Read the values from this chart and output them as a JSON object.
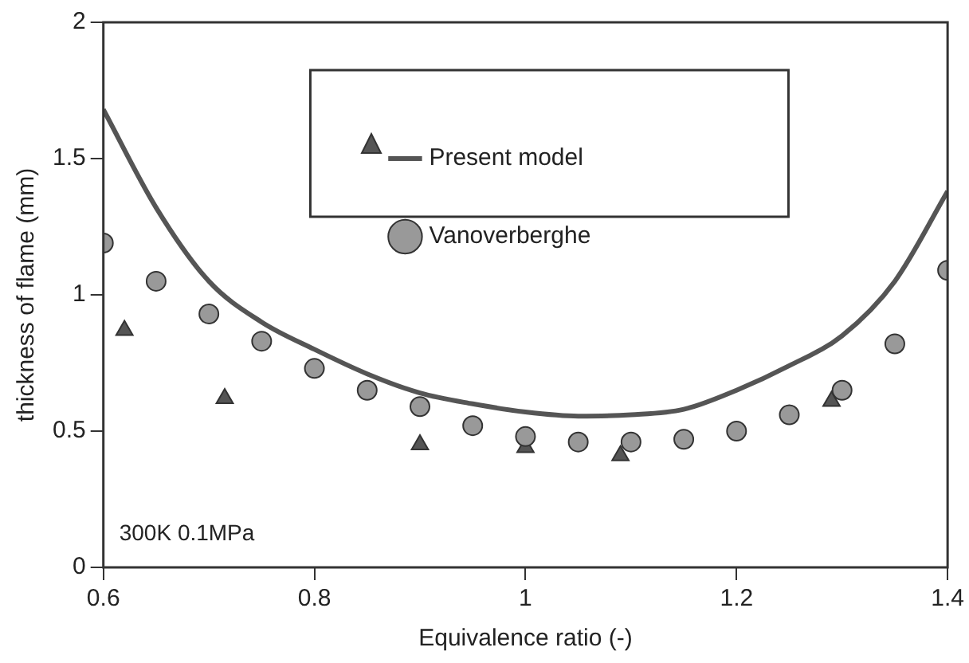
{
  "chart_data": {
    "type": "scatter",
    "xlabel": "Equivalence ratio (-)",
    "ylabel": "thickness of flame (mm)",
    "xlim": [
      0.6,
      1.4
    ],
    "xticks": [
      0.6,
      0.8,
      1,
      1.2,
      1.4
    ],
    "ylim": [
      0,
      2
    ],
    "yticks": [
      0,
      0.5,
      1,
      1.5,
      2
    ],
    "grid": false,
    "legend": "top",
    "annotations": [
      "300K 0.1MPa"
    ],
    "series": [
      {
        "name": "Present model",
        "type": "line",
        "marker": "none",
        "color": "#555555",
        "x": [
          0.6,
          0.65,
          0.7,
          0.75,
          0.8,
          0.85,
          0.9,
          0.95,
          1.0,
          1.05,
          1.1,
          1.15,
          1.2,
          1.25,
          1.3,
          1.35,
          1.4
        ],
        "values": [
          1.68,
          1.32,
          1.05,
          0.9,
          0.8,
          0.71,
          0.64,
          0.6,
          0.57,
          0.555,
          0.56,
          0.58,
          0.65,
          0.74,
          0.85,
          1.05,
          1.38
        ]
      },
      {
        "type": "scatter",
        "marker": "triangle",
        "color": "#555555",
        "x": [
          0.62,
          0.715,
          0.9,
          1.0,
          1.09,
          1.29
        ],
        "values": [
          0.87,
          0.62,
          0.45,
          0.44,
          0.41,
          0.61
        ]
      },
      {
        "name": "Vanoverberghe",
        "type": "scatter",
        "marker": "circle",
        "color": "#999999",
        "x": [
          0.6,
          0.65,
          0.7,
          0.75,
          0.8,
          0.85,
          0.9,
          0.95,
          1.0,
          1.05,
          1.1,
          1.15,
          1.2,
          1.25,
          1.3,
          1.35,
          1.4
        ],
        "values": [
          1.19,
          1.05,
          0.93,
          0.83,
          0.73,
          0.65,
          0.59,
          0.52,
          0.48,
          0.46,
          0.46,
          0.47,
          0.5,
          0.56,
          0.65,
          0.82,
          1.09
        ]
      }
    ]
  }
}
